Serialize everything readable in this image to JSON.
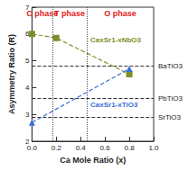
{
  "chart_data": {
    "type": "line",
    "x_label": "Ca Mole Ratio (x)",
    "y_label": "Asymmetry Ratio (R)",
    "xlim": [
      0,
      1.0
    ],
    "xticks": [
      {
        "value": 0,
        "label": "0.0"
      },
      {
        "value": 0.2,
        "label": "0.2"
      },
      {
        "value": 0.4,
        "label": "0.4"
      },
      {
        "value": 0.6,
        "label": "0.6"
      },
      {
        "value": 0.8,
        "label": "0.8"
      },
      {
        "value": 1.0,
        "label": "1.0"
      }
    ],
    "ylim": [
      2,
      7
    ],
    "yticks": [
      2,
      3,
      4,
      5,
      6,
      7
    ],
    "grid": false,
    "series": [
      {
        "name": "CaxSr1-xNbO3",
        "color": "#7a8f2a",
        "marker": "square",
        "line_style": "dashed",
        "x": [
          0,
          0.2,
          0.8
        ],
        "values": [
          6.0,
          5.85,
          4.5
        ]
      },
      {
        "name": "CaxSr1-xTiO3",
        "color": "#3a6fd8",
        "marker": "triangle",
        "line_style": "dashed",
        "x": [
          0,
          0.8
        ],
        "values": [
          2.7,
          4.7
        ]
      }
    ],
    "reference_lines": [
      {
        "label": "BaTiO3",
        "value": 4.8
      },
      {
        "label": "PbTiO3",
        "value": 3.6
      },
      {
        "label": "SrTiO3",
        "value": 2.9
      }
    ],
    "phases": [
      {
        "label": "C phase",
        "range": [
          0,
          0.17
        ],
        "color": "#e02020"
      },
      {
        "label": "T phase",
        "range": [
          0.17,
          0.45
        ],
        "color": "#e02020"
      },
      {
        "label": "O phase",
        "range": [
          0.45,
          1.0
        ],
        "color": "#e02020"
      }
    ]
  }
}
